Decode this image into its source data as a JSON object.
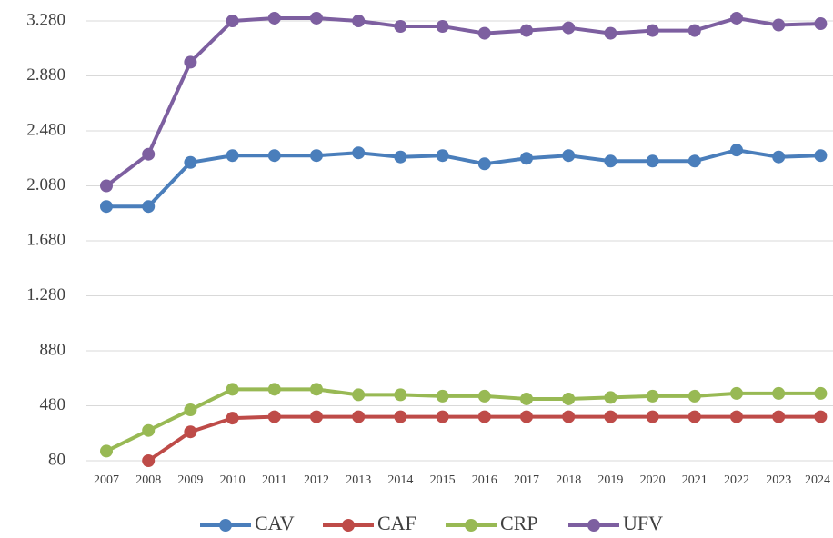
{
  "chart_data": {
    "type": "line",
    "categories": [
      "2007",
      "2008",
      "2009",
      "2010",
      "2011",
      "2012",
      "2013",
      "2014",
      "2015",
      "2016",
      "2017",
      "2018",
      "2019",
      "2020",
      "2021",
      "2022",
      "2023",
      "2024"
    ],
    "series": [
      {
        "name": "CAV",
        "color": "#4a7ebb",
        "values": [
          1930,
          1930,
          2250,
          2300,
          2300,
          2300,
          2320,
          2290,
          2300,
          2240,
          2280,
          2300,
          2260,
          2260,
          2260,
          2340,
          2290,
          2300
        ]
      },
      {
        "name": "CAF",
        "color": "#be4b48",
        "values": [
          null,
          80,
          290,
          390,
          400,
          400,
          400,
          400,
          400,
          400,
          400,
          400,
          400,
          400,
          400,
          400,
          400,
          400
        ]
      },
      {
        "name": "CRP",
        "color": "#98b954",
        "values": [
          150,
          300,
          450,
          600,
          600,
          600,
          560,
          560,
          550,
          550,
          530,
          530,
          540,
          550,
          550,
          570,
          570,
          570
        ]
      },
      {
        "name": "UFV",
        "color": "#7d5fa0",
        "values": [
          2080,
          2310,
          2980,
          3280,
          3300,
          3300,
          3280,
          3240,
          3240,
          3190,
          3210,
          3230,
          3190,
          3210,
          3210,
          3300,
          3250,
          3260
        ]
      }
    ],
    "ylim": [
      80,
      3280
    ],
    "yticks": [
      80,
      480,
      880,
      {
        "value": 1280,
        "label": "1.280"
      },
      {
        "value": 1680,
        "label": "1.680"
      },
      {
        "value": 2080,
        "label": "2.080"
      },
      {
        "value": 2480,
        "label": "2.480"
      },
      {
        "value": 2880,
        "label": "2.880"
      },
      {
        "value": 3280,
        "label": "3.280"
      }
    ],
    "grid": true,
    "legend": "bottom"
  }
}
